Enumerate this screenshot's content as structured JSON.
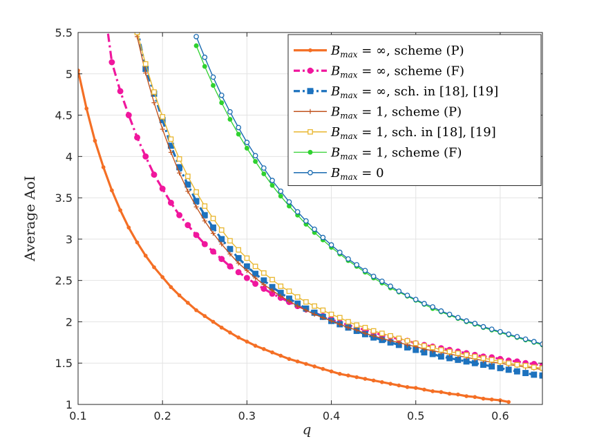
{
  "chart_data": {
    "type": "line",
    "xlabel": "q",
    "ylabel": "Average AoI",
    "xlim": [
      0.1,
      0.65
    ],
    "ylim": [
      1,
      5.5
    ],
    "xticks": [
      0.1,
      0.2,
      0.3,
      0.4,
      0.5,
      0.6
    ],
    "yticks": [
      1,
      1.5,
      2,
      2.5,
      3,
      3.5,
      4,
      4.5,
      5,
      5.5
    ],
    "xtick_labels": [
      "0.1",
      "0.2",
      "0.3",
      "0.4",
      "0.5",
      "0.6"
    ],
    "ytick_labels": [
      "1",
      "1.5",
      "2",
      "2.5",
      "3",
      "3.5",
      "4",
      "4.5",
      "5",
      "5.5"
    ],
    "grid": true,
    "legend_position": "top-right",
    "x": [
      0.1,
      0.11,
      0.12,
      0.13,
      0.14,
      0.15,
      0.16,
      0.17,
      0.18,
      0.19,
      0.2,
      0.21,
      0.22,
      0.23,
      0.24,
      0.25,
      0.26,
      0.27,
      0.28,
      0.29,
      0.3,
      0.31,
      0.32,
      0.33,
      0.34,
      0.35,
      0.36,
      0.37,
      0.38,
      0.39,
      0.4,
      0.41,
      0.42,
      0.43,
      0.44,
      0.45,
      0.46,
      0.47,
      0.48,
      0.49,
      0.5,
      0.51,
      0.52,
      0.53,
      0.54,
      0.55,
      0.56,
      0.57,
      0.58,
      0.59,
      0.6,
      0.61,
      0.62,
      0.63,
      0.64,
      0.65
    ],
    "series": [
      {
        "name": "B_max = ∞, scheme (P)",
        "legend_math": "B",
        "legend_sub": "max",
        "legend_rest": " = ∞, scheme (P)",
        "color": "#f46f25",
        "width": 3.2,
        "dash": "",
        "marker": "dot",
        "marker_size": 2.2,
        "marker_fill": true,
        "values": [
          5.04,
          4.58,
          4.19,
          3.87,
          3.59,
          3.35,
          3.14,
          2.96,
          2.8,
          2.66,
          2.54,
          2.42,
          2.32,
          2.23,
          2.14,
          2.07,
          2.0,
          1.93,
          1.87,
          1.81,
          1.76,
          1.71,
          1.67,
          1.63,
          1.59,
          1.55,
          1.52,
          1.49,
          1.46,
          1.43,
          1.4,
          1.37,
          1.35,
          1.33,
          1.31,
          1.29,
          1.27,
          1.25,
          1.23,
          1.21,
          1.2,
          1.18,
          1.16,
          1.15,
          1.13,
          1.12,
          1.1,
          1.09,
          1.07,
          1.06,
          1.05,
          1.03,
          null,
          null,
          null,
          null
        ]
      },
      {
        "name": "B_max = ∞, scheme (F)",
        "legend_math": "B",
        "legend_sub": "max",
        "legend_rest": " = ∞, scheme (F)",
        "color": "#f0179d",
        "width": 3.2,
        "dash": "12,5,3,5",
        "marker": "circle",
        "marker_size": 3.8,
        "marker_fill": true,
        "values": [
          null,
          null,
          null,
          5.9,
          5.14,
          4.79,
          4.5,
          4.23,
          4.0,
          3.78,
          3.61,
          3.44,
          3.29,
          3.17,
          3.05,
          2.94,
          2.85,
          2.76,
          2.67,
          2.6,
          2.53,
          2.46,
          2.4,
          2.34,
          2.29,
          2.24,
          2.19,
          2.15,
          2.11,
          2.07,
          2.03,
          1.99,
          1.96,
          1.93,
          1.9,
          1.87,
          1.84,
          1.82,
          1.79,
          1.77,
          1.74,
          1.72,
          1.7,
          1.68,
          1.66,
          1.64,
          1.62,
          1.6,
          1.58,
          1.57,
          1.55,
          1.53,
          1.52,
          1.5,
          1.49,
          1.47
        ]
      },
      {
        "name": "B_max = ∞, sch. in [18], [19]",
        "legend_math": "B",
        "legend_sub": "max",
        "legend_rest": " = ∞, sch. in [18], [19]",
        "color": "#1d72be",
        "width": 3.2,
        "dash": "10,5,3,5",
        "marker": "square",
        "marker_size": 3.8,
        "marker_fill": true,
        "values": [
          null,
          null,
          null,
          null,
          null,
          null,
          null,
          5.55,
          5.06,
          4.76,
          4.44,
          4.13,
          3.87,
          3.66,
          3.46,
          3.29,
          3.14,
          3.0,
          2.88,
          2.77,
          2.67,
          2.58,
          2.5,
          2.42,
          2.35,
          2.28,
          2.22,
          2.16,
          2.11,
          2.06,
          2.01,
          1.97,
          1.93,
          1.89,
          1.85,
          1.81,
          1.78,
          1.75,
          1.72,
          1.69,
          1.66,
          1.63,
          1.61,
          1.58,
          1.56,
          1.54,
          1.52,
          1.5,
          1.48,
          1.46,
          1.44,
          1.42,
          1.4,
          1.38,
          1.36,
          1.35
        ]
      },
      {
        "name": "B_max = 1, scheme (P)",
        "legend_math": "B",
        "legend_sub": "max",
        "legend_rest": " = 1, scheme (P)",
        "color": "#c0531e",
        "width": 1.4,
        "dash": "",
        "marker": "plus",
        "marker_size": 3.5,
        "marker_fill": false,
        "values": [
          null,
          null,
          null,
          null,
          null,
          null,
          6.0,
          5.45,
          5.01,
          4.65,
          4.33,
          4.05,
          3.8,
          3.58,
          3.39,
          3.22,
          3.07,
          2.94,
          2.82,
          2.71,
          2.62,
          2.53,
          2.45,
          2.38,
          2.31,
          2.25,
          2.19,
          2.14,
          2.09,
          2.05,
          2.01,
          1.97,
          1.93,
          1.9,
          1.86,
          1.83,
          1.8,
          1.77,
          1.75,
          1.72,
          1.7,
          1.67,
          1.65,
          1.63,
          1.61,
          1.59,
          1.57,
          1.55,
          1.53,
          1.51,
          1.5,
          1.48,
          1.47,
          1.45,
          1.44,
          1.42
        ]
      },
      {
        "name": "B_max = 1, sch. in [18], [19]",
        "legend_math": "B",
        "legend_sub": "max",
        "legend_rest": " = 1, sch. in [18], [19]",
        "color": "#e8b62e",
        "width": 1.4,
        "dash": "",
        "marker": "square",
        "marker_size": 3.2,
        "marker_fill": false,
        "values": [
          null,
          null,
          null,
          null,
          null,
          null,
          null,
          5.5,
          5.12,
          4.78,
          4.48,
          4.21,
          3.97,
          3.76,
          3.57,
          3.4,
          3.25,
          3.11,
          2.98,
          2.87,
          2.77,
          2.67,
          2.59,
          2.51,
          2.43,
          2.37,
          2.3,
          2.24,
          2.19,
          2.14,
          2.09,
          2.05,
          2.0,
          1.96,
          1.93,
          1.89,
          1.86,
          1.83,
          1.8,
          1.77,
          1.74,
          1.71,
          1.69,
          1.66,
          1.64,
          1.62,
          1.6,
          1.58,
          1.56,
          1.54,
          1.52,
          1.5,
          1.48,
          1.47,
          1.45,
          1.44
        ]
      },
      {
        "name": "B_max = 1, scheme (F)",
        "legend_math": "B",
        "legend_sub": "max",
        "legend_rest": " = 1, scheme (F)",
        "color": "#2fd12f",
        "width": 1.3,
        "dash": "",
        "marker": "dot",
        "marker_size": 2.8,
        "marker_fill": true,
        "values": [
          null,
          null,
          null,
          null,
          null,
          null,
          null,
          null,
          null,
          null,
          null,
          null,
          null,
          null,
          5.34,
          5.09,
          4.86,
          4.65,
          4.45,
          4.27,
          4.1,
          3.94,
          3.79,
          3.65,
          3.52,
          3.4,
          3.29,
          3.18,
          3.08,
          2.99,
          2.9,
          2.82,
          2.74,
          2.67,
          2.6,
          2.53,
          2.47,
          2.41,
          2.36,
          2.31,
          2.26,
          2.21,
          2.16,
          2.12,
          2.08,
          2.04,
          2.0,
          1.97,
          1.93,
          1.9,
          1.87,
          1.84,
          1.81,
          1.78,
          1.75,
          1.72
        ]
      },
      {
        "name": "B_max = 0",
        "legend_math": "B",
        "legend_sub": "max",
        "legend_rest": " = 0",
        "color": "#1769b0",
        "width": 1.4,
        "dash": "",
        "marker": "circle",
        "marker_size": 3.2,
        "marker_fill": false,
        "values": [
          null,
          null,
          null,
          null,
          null,
          null,
          null,
          null,
          null,
          null,
          null,
          null,
          null,
          null,
          5.45,
          5.2,
          4.96,
          4.74,
          4.54,
          4.35,
          4.17,
          4.01,
          3.86,
          3.71,
          3.58,
          3.45,
          3.33,
          3.22,
          3.12,
          3.02,
          2.93,
          2.84,
          2.76,
          2.69,
          2.62,
          2.55,
          2.49,
          2.43,
          2.37,
          2.32,
          2.27,
          2.22,
          2.18,
          2.13,
          2.09,
          2.05,
          2.01,
          1.98,
          1.94,
          1.91,
          1.88,
          1.85,
          1.82,
          1.79,
          1.76,
          1.73
        ]
      }
    ]
  }
}
